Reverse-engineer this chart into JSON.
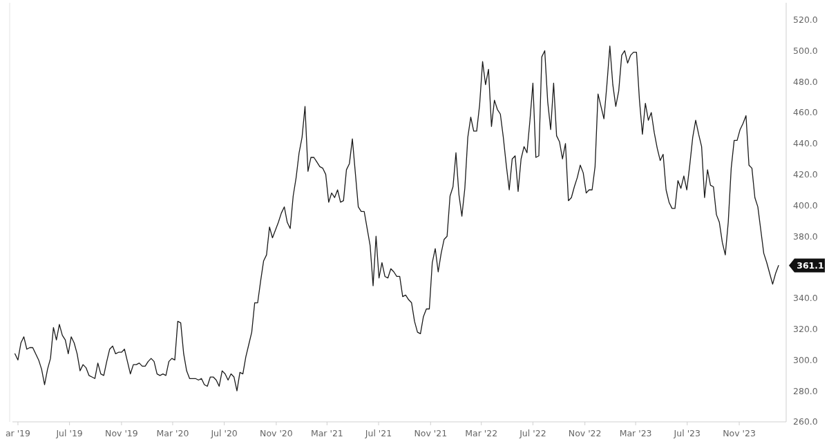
{
  "chart_data": {
    "type": "line",
    "x": [
      "2019-02-22",
      "2019-03-01",
      "2019-03-08",
      "2019-03-15",
      "2019-03-22",
      "2019-03-29",
      "2019-04-05",
      "2019-04-12",
      "2019-04-19",
      "2019-04-26",
      "2019-05-03",
      "2019-05-10",
      "2019-05-17",
      "2019-05-24",
      "2019-05-31",
      "2019-06-07",
      "2019-06-14",
      "2019-06-21",
      "2019-06-28",
      "2019-07-05",
      "2019-07-12",
      "2019-07-19",
      "2019-07-26",
      "2019-08-02",
      "2019-08-09",
      "2019-08-16",
      "2019-08-23",
      "2019-08-30",
      "2019-09-06",
      "2019-09-13",
      "2019-09-20",
      "2019-09-27",
      "2019-10-04",
      "2019-10-11",
      "2019-10-18",
      "2019-10-25",
      "2019-11-01",
      "2019-11-08",
      "2019-11-15",
      "2019-11-22",
      "2019-11-29",
      "2019-12-06",
      "2019-12-13",
      "2019-12-20",
      "2019-12-27",
      "2020-01-03",
      "2020-01-10",
      "2020-01-17",
      "2020-01-24",
      "2020-01-31",
      "2020-02-07",
      "2020-02-14",
      "2020-02-21",
      "2020-02-28",
      "2020-03-06",
      "2020-03-13",
      "2020-03-20",
      "2020-03-27",
      "2020-04-03",
      "2020-04-10",
      "2020-04-17",
      "2020-04-24",
      "2020-05-01",
      "2020-05-08",
      "2020-05-15",
      "2020-05-22",
      "2020-05-29",
      "2020-06-05",
      "2020-06-12",
      "2020-06-19",
      "2020-06-26",
      "2020-07-03",
      "2020-07-10",
      "2020-07-17",
      "2020-07-24",
      "2020-07-31",
      "2020-08-07",
      "2020-08-14",
      "2020-08-21",
      "2020-08-28",
      "2020-09-04",
      "2020-09-11",
      "2020-09-18",
      "2020-09-25",
      "2020-10-02",
      "2020-10-09",
      "2020-10-16",
      "2020-10-23",
      "2020-10-30",
      "2020-11-06",
      "2020-11-13",
      "2020-11-20",
      "2020-11-27",
      "2020-12-04",
      "2020-12-11",
      "2020-12-18",
      "2020-12-25",
      "2021-01-01",
      "2021-01-08",
      "2021-01-15",
      "2021-01-22",
      "2021-01-29",
      "2021-02-05",
      "2021-02-12",
      "2021-02-19",
      "2021-02-26",
      "2021-03-05",
      "2021-03-12",
      "2021-03-19",
      "2021-03-26",
      "2021-04-02",
      "2021-04-09",
      "2021-04-16",
      "2021-04-23",
      "2021-04-30",
      "2021-05-07",
      "2021-05-14",
      "2021-05-21",
      "2021-05-28",
      "2021-06-04",
      "2021-06-11",
      "2021-06-18",
      "2021-06-25",
      "2021-07-02",
      "2021-07-09",
      "2021-07-16",
      "2021-07-23",
      "2021-07-30",
      "2021-08-06",
      "2021-08-13",
      "2021-08-20",
      "2021-08-27",
      "2021-09-03",
      "2021-09-10",
      "2021-09-17",
      "2021-09-24",
      "2021-10-01",
      "2021-10-08",
      "2021-10-15",
      "2021-10-22",
      "2021-10-29",
      "2021-11-05",
      "2021-11-12",
      "2021-11-19",
      "2021-11-26",
      "2021-12-03",
      "2021-12-10",
      "2021-12-17",
      "2021-12-24",
      "2021-12-31",
      "2022-01-07",
      "2022-01-14",
      "2022-01-21",
      "2022-01-28",
      "2022-02-04",
      "2022-02-11",
      "2022-02-18",
      "2022-02-25",
      "2022-03-04",
      "2022-03-11",
      "2022-03-18",
      "2022-03-25",
      "2022-04-01",
      "2022-04-08",
      "2022-04-15",
      "2022-04-22",
      "2022-04-29",
      "2022-05-06",
      "2022-05-13",
      "2022-05-20",
      "2022-05-27",
      "2022-06-03",
      "2022-06-10",
      "2022-06-17",
      "2022-06-24",
      "2022-07-01",
      "2022-07-08",
      "2022-07-15",
      "2022-07-22",
      "2022-07-29",
      "2022-08-05",
      "2022-08-12",
      "2022-08-19",
      "2022-08-26",
      "2022-09-02",
      "2022-09-09",
      "2022-09-16",
      "2022-09-23",
      "2022-09-30",
      "2022-10-07",
      "2022-10-14",
      "2022-10-21",
      "2022-10-28",
      "2022-11-04",
      "2022-11-11",
      "2022-11-18",
      "2022-11-25",
      "2022-12-02",
      "2022-12-09",
      "2022-12-16",
      "2022-12-23",
      "2022-12-30",
      "2023-01-06",
      "2023-01-13",
      "2023-01-20",
      "2023-01-27",
      "2023-02-03",
      "2023-02-10",
      "2023-02-17",
      "2023-02-24",
      "2023-03-03",
      "2023-03-10",
      "2023-03-17",
      "2023-03-24",
      "2023-03-31",
      "2023-04-07",
      "2023-04-14",
      "2023-04-21",
      "2023-04-28",
      "2023-05-05",
      "2023-05-12",
      "2023-05-19",
      "2023-05-26",
      "2023-06-02",
      "2023-06-09",
      "2023-06-16",
      "2023-06-23",
      "2023-06-30",
      "2023-07-07",
      "2023-07-14",
      "2023-07-21",
      "2023-07-28",
      "2023-08-04",
      "2023-08-11",
      "2023-08-18",
      "2023-08-25",
      "2023-09-01",
      "2023-09-08",
      "2023-09-15",
      "2023-09-22",
      "2023-09-29",
      "2023-10-06",
      "2023-10-13",
      "2023-10-20",
      "2023-10-27",
      "2023-11-03",
      "2023-11-10",
      "2023-11-17",
      "2023-11-24",
      "2023-12-01",
      "2023-12-08",
      "2023-12-15",
      "2023-12-22",
      "2023-12-29",
      "2024-01-05",
      "2024-01-12",
      "2024-01-19",
      "2024-01-26",
      "2024-02-02"
    ],
    "series": [
      {
        "color": "#1a1a1a",
        "values": [
          304,
          300,
          311,
          315,
          307,
          308,
          308,
          304,
          300,
          294,
          284,
          294,
          301,
          321,
          313,
          323,
          316,
          313,
          304,
          315,
          311,
          304,
          293,
          297,
          295,
          290,
          289,
          288,
          298,
          291,
          290,
          299,
          307,
          309,
          304,
          305,
          305,
          307,
          299,
          291,
          297,
          297,
          298,
          296,
          296,
          299,
          301,
          299,
          291,
          290,
          291,
          290,
          299,
          301,
          300,
          325,
          324,
          304,
          293,
          288,
          288,
          288,
          287,
          288,
          284,
          283,
          289,
          289,
          287,
          283,
          293,
          291,
          287,
          291,
          289,
          280,
          292,
          291,
          302,
          310,
          318,
          337,
          337,
          351,
          364,
          368,
          386,
          379,
          384,
          389,
          395,
          399,
          389,
          385,
          406,
          418,
          434,
          444,
          464,
          422,
          431,
          431,
          428,
          425,
          424,
          420,
          402,
          408,
          405,
          410,
          402,
          403,
          423,
          427,
          443,
          421,
          399,
          396,
          396,
          385,
          374,
          348,
          380,
          353,
          363,
          354,
          353,
          359,
          357,
          354,
          354,
          341,
          342,
          339,
          337,
          325,
          318,
          317,
          328,
          333,
          333,
          363,
          372,
          357,
          369,
          378,
          380,
          406,
          412,
          434,
          407,
          393,
          411,
          444,
          457,
          448,
          448,
          465,
          493,
          478,
          488,
          451,
          468,
          462,
          459,
          444,
          426,
          410,
          430,
          432,
          409,
          430,
          438,
          434,
          455,
          479,
          431,
          432,
          496,
          500,
          467,
          449,
          479,
          445,
          441,
          430,
          440,
          403,
          405,
          412,
          418,
          426,
          421,
          408,
          410,
          410,
          425,
          472,
          464,
          456,
          478,
          503,
          478,
          464,
          474,
          497,
          500,
          492,
          497,
          499,
          499,
          468,
          446,
          466,
          455,
          460,
          447,
          437,
          429,
          433,
          410,
          402,
          398,
          398,
          416,
          411,
          419,
          410,
          426,
          444,
          455,
          446,
          438,
          405,
          423,
          413,
          412,
          394,
          389,
          376,
          368,
          389,
          424,
          442,
          442,
          449,
          453,
          458,
          426,
          424,
          405,
          399,
          384,
          369,
          363,
          356,
          349,
          356,
          361.1
        ]
      }
    ],
    "xlim": [
      "2019-02-16",
      "2024-02-20"
    ],
    "xticks": [
      {
        "value": "2019-03-01",
        "label": "ar '19"
      },
      {
        "value": "2019-07-01",
        "label": "Jul '19"
      },
      {
        "value": "2019-11-01",
        "label": "Nov '19"
      },
      {
        "value": "2020-03-01",
        "label": "Mar '20"
      },
      {
        "value": "2020-07-01",
        "label": "Jul '20"
      },
      {
        "value": "2020-11-01",
        "label": "Nov '20"
      },
      {
        "value": "2021-03-01",
        "label": "Mar '21"
      },
      {
        "value": "2021-07-01",
        "label": "Jul '21"
      },
      {
        "value": "2021-11-01",
        "label": "Nov '21"
      },
      {
        "value": "2022-03-01",
        "label": "Mar '22"
      },
      {
        "value": "2022-07-01",
        "label": "Jul '22"
      },
      {
        "value": "2022-11-01",
        "label": "Nov '22"
      },
      {
        "value": "2023-03-01",
        "label": "Mar '23"
      },
      {
        "value": "2023-07-01",
        "label": "Jul '23"
      },
      {
        "value": "2023-11-01",
        "label": "Nov '23"
      }
    ],
    "ylim": [
      260,
      531
    ],
    "yticks": [
      {
        "value": 260,
        "label": "260.0"
      },
      {
        "value": 280,
        "label": "280.0"
      },
      {
        "value": 300,
        "label": "300.0"
      },
      {
        "value": 320,
        "label": "320.0"
      },
      {
        "value": 340,
        "label": "340.0"
      },
      {
        "value": 380,
        "label": "380.0"
      },
      {
        "value": 400,
        "label": "400.0"
      },
      {
        "value": 420,
        "label": "420.0"
      },
      {
        "value": 440,
        "label": "440.0"
      },
      {
        "value": 460,
        "label": "460.0"
      },
      {
        "value": 480,
        "label": "480.0"
      },
      {
        "value": 500,
        "label": "500.0"
      },
      {
        "value": 520,
        "label": "520.0"
      }
    ],
    "annotations": [
      {
        "text": "361.1",
        "x": "2024-02-02",
        "y": 361.1
      }
    ],
    "grid": false,
    "marker": "none",
    "line_style": "solid"
  }
}
